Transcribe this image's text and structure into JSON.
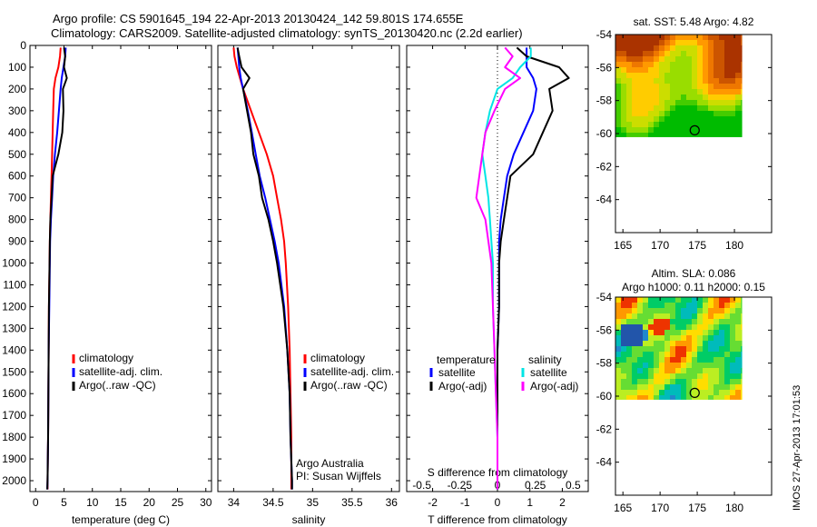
{
  "header": {
    "line1": "Argo profile: CS 5901645_194 22-Apr-2013 20130424_142 59.801S 174.655E",
    "line2": "Climatology: CARS2009. Satellite-adjusted climatology: synTS_20130420.nc (2.2d earlier)"
  },
  "colors": {
    "climatology": "#ff0000",
    "satellite": "#0000ff",
    "argo": "#000000",
    "sat_salinity": "#00e5e5",
    "argo_salinity": "#ff00ff"
  },
  "depth_ticks": [
    "0",
    "100",
    "200",
    "300",
    "400",
    "500",
    "600",
    "700",
    "800",
    "900",
    "1000",
    "1100",
    "1200",
    "1300",
    "1400",
    "1500",
    "1600",
    "1700",
    "1800",
    "1900",
    "2000"
  ],
  "footer_stamp": "IMOS 27-Apr-2013 17:01:53",
  "chart_data": [
    {
      "id": "temperature",
      "type": "line",
      "xlabel": "temperature (deg C)",
      "xlim": [
        -1,
        31
      ],
      "ylim": [
        0,
        2050
      ],
      "y_reversed": true,
      "xticks": [
        0,
        5,
        10,
        15,
        20,
        25,
        30
      ],
      "xtick_labels": [
        "0",
        "5",
        "10",
        "15",
        "20",
        "25",
        "30"
      ],
      "legend": [
        "climatology",
        "satellite-adj. clim.",
        "Argo(..raw -QC)"
      ],
      "depth": [
        10,
        50,
        100,
        150,
        200,
        300,
        400,
        500,
        600,
        700,
        800,
        900,
        1000,
        1200,
        1400,
        1600,
        1800,
        2000,
        2040
      ],
      "series": [
        {
          "name": "climatology",
          "color": "#ff0000",
          "values": [
            4.4,
            4.3,
            4.0,
            3.5,
            3.2,
            3.1,
            3.0,
            2.9,
            2.8,
            2.7,
            2.6,
            2.5,
            2.45,
            2.35,
            2.3,
            2.25,
            2.2,
            2.1,
            2.1
          ]
        },
        {
          "name": "satellite-adj. clim.",
          "color": "#0000ff",
          "values": [
            5.3,
            5.2,
            4.9,
            4.6,
            4.4,
            4.1,
            3.8,
            3.4,
            3.1,
            2.9,
            2.7,
            2.55,
            2.5,
            2.4,
            2.3,
            2.25,
            2.2,
            2.1,
            2.05
          ]
        },
        {
          "name": "Argo(..raw -QC)",
          "color": "#000000",
          "values": [
            5.0,
            5.2,
            5.0,
            5.5,
            4.8,
            4.9,
            4.7,
            4.0,
            3.0,
            2.8,
            2.6,
            2.5,
            2.45,
            2.35,
            2.3,
            2.25,
            2.2,
            2.1,
            2.05
          ]
        }
      ]
    },
    {
      "id": "salinity",
      "type": "line",
      "xlabel": "salinity",
      "xlim": [
        33.8,
        36.1
      ],
      "ylim": [
        0,
        2050
      ],
      "y_reversed": true,
      "xticks": [
        34,
        34.5,
        35,
        35.5,
        36
      ],
      "xtick_labels": [
        "34",
        "34.5",
        "35",
        "35.5",
        "36"
      ],
      "legend": [
        "climatology",
        "satellite-adj. clim.",
        "Argo(..raw -QC)"
      ],
      "annotations": [
        "Argo Australia",
        "PI: Susan Wijffels"
      ],
      "depth": [
        10,
        50,
        100,
        150,
        200,
        300,
        400,
        500,
        600,
        700,
        800,
        900,
        1000,
        1200,
        1400,
        1600,
        1800,
        2000,
        2040
      ],
      "series": [
        {
          "name": "climatology",
          "color": "#ff0000",
          "values": [
            34.0,
            34.01,
            34.04,
            34.08,
            34.12,
            34.22,
            34.32,
            34.42,
            34.5,
            34.55,
            34.6,
            34.64,
            34.66,
            34.69,
            34.71,
            34.72,
            34.73,
            34.73,
            34.73
          ]
        },
        {
          "name": "satellite-adj. clim.",
          "color": "#0000ff",
          "values": [
            34.05,
            34.06,
            34.07,
            34.09,
            34.12,
            34.18,
            34.23,
            34.28,
            34.33,
            34.4,
            34.46,
            34.52,
            34.57,
            34.64,
            34.68,
            34.71,
            34.72,
            34.74,
            34.74
          ]
        },
        {
          "name": "Argo(..raw -QC)",
          "color": "#000000",
          "values": [
            34.05,
            34.07,
            34.1,
            34.2,
            34.12,
            34.17,
            34.22,
            34.25,
            34.32,
            34.36,
            34.44,
            34.5,
            34.55,
            34.63,
            34.68,
            34.71,
            34.72,
            34.74,
            34.74
          ]
        }
      ]
    },
    {
      "id": "differences",
      "type": "line",
      "xlabel": "T difference from climatology",
      "xlim": [
        -2.8,
        2.8
      ],
      "ylim": [
        0,
        2050
      ],
      "y_reversed": true,
      "xticks": [
        -2,
        -1,
        0,
        1,
        2
      ],
      "xtick_labels": [
        "-2",
        "-1",
        "0",
        "1",
        "2"
      ],
      "top_axis_label": "S difference from climatology",
      "top_ticks": [
        -0.5,
        -0.25,
        0,
        0.25,
        0.5
      ],
      "top_tick_labels": [
        "-0.5",
        "-0.25",
        "0",
        "0.25",
        "0.5"
      ],
      "legend_groups": [
        {
          "title": "temperature",
          "items": [
            "satellite",
            "Argo(-adj)"
          ]
        },
        {
          "title": "salinity",
          "items": [
            "satellite",
            "Argo(-adj)"
          ]
        }
      ],
      "depth": [
        10,
        50,
        100,
        150,
        200,
        300,
        400,
        500,
        600,
        700,
        800,
        900,
        1000,
        1200,
        1400,
        1600,
        1800,
        2000,
        2040
      ],
      "series": [
        {
          "name": "temperature satellite",
          "color": "#0000ff",
          "values": [
            0.9,
            0.9,
            0.9,
            1.1,
            1.2,
            1.1,
            0.8,
            0.5,
            0.3,
            0.2,
            0.1,
            0.05,
            0.05,
            0.05,
            0.0,
            0.0,
            0.0,
            0.0,
            0.0
          ]
        },
        {
          "name": "temperature Argo(-adj)",
          "color": "#000000",
          "values": [
            0.6,
            0.9,
            1.9,
            2.2,
            1.6,
            1.7,
            1.4,
            1.1,
            0.4,
            0.3,
            0.2,
            0.1,
            0.05,
            0.05,
            0.0,
            0.0,
            0.0,
            0.0,
            0.0
          ]
        },
        {
          "name": "salinity satellite",
          "color": "#00e5e5",
          "values": [
            0.22,
            0.22,
            0.15,
            0.1,
            0.0,
            -0.05,
            -0.08,
            -0.1,
            -0.08,
            -0.06,
            -0.05,
            -0.04,
            -0.03,
            -0.03,
            -0.02,
            -0.01,
            0.0,
            0.0,
            0.0
          ]
        },
        {
          "name": "salinity Argo(-adj)",
          "color": "#ff00ff",
          "values": [
            0.05,
            0.1,
            0.05,
            0.15,
            0.05,
            -0.02,
            -0.08,
            -0.1,
            -0.12,
            -0.14,
            -0.08,
            -0.06,
            -0.04,
            -0.03,
            -0.02,
            -0.01,
            0.0,
            0.0,
            0.0
          ]
        }
      ]
    },
    {
      "id": "sst_map",
      "type": "heatmap",
      "title": "sat. SST: 5.48 Argo: 4.82",
      "xlim": [
        164,
        185
      ],
      "ylim": [
        -66,
        -54
      ],
      "xticks": [
        165,
        170,
        175,
        180
      ],
      "xtick_labels": [
        "165",
        "170",
        "175",
        "180"
      ],
      "yticks": [
        -54,
        -56,
        -58,
        -60,
        -62,
        -64
      ],
      "ytick_labels": [
        "-54",
        "-56",
        "-58",
        "-60",
        "-62",
        "-64"
      ],
      "data_extent": {
        "lon": [
          164,
          181
        ],
        "lat": [
          -60.2,
          -54
        ]
      },
      "marker": {
        "lon": 174.655,
        "lat": -59.801
      }
    },
    {
      "id": "sla_map",
      "type": "heatmap",
      "title": "Altim. SLA: 0.086",
      "subtitle": "Argo h1000: 0.11 h2000: 0.15",
      "xlim": [
        164,
        185
      ],
      "ylim": [
        -66,
        -54
      ],
      "xticks": [
        165,
        170,
        175,
        180
      ],
      "xtick_labels": [
        "165",
        "170",
        "175",
        "180"
      ],
      "yticks": [
        -54,
        -56,
        -58,
        -60,
        -62,
        -64
      ],
      "ytick_labels": [
        "-54",
        "-56",
        "-58",
        "-60",
        "-62",
        "-64"
      ],
      "data_extent": {
        "lon": [
          164,
          181
        ],
        "lat": [
          -60.2,
          -54
        ]
      },
      "marker": {
        "lon": 174.655,
        "lat": -59.801
      }
    }
  ]
}
